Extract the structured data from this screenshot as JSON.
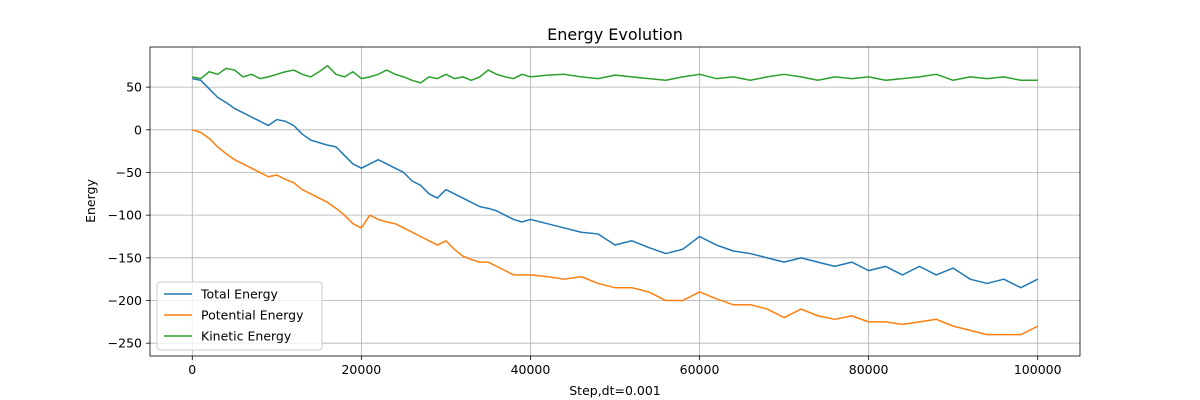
{
  "chart_data": {
    "type": "line",
    "title": "Energy Evolution",
    "xlabel": "Step,dt=0.001",
    "ylabel": "Energy",
    "xlim": [
      -5000,
      105000
    ],
    "ylim": [
      -265,
      97
    ],
    "x_ticks": [
      0,
      20000,
      40000,
      60000,
      80000,
      100000
    ],
    "x_tick_labels": [
      "0",
      "20000",
      "40000",
      "60000",
      "80000",
      "100000"
    ],
    "y_ticks": [
      -250,
      -200,
      -150,
      -100,
      -50,
      0,
      50
    ],
    "y_tick_labels": [
      "−250",
      "−200",
      "−150",
      "−100",
      "−50",
      "0",
      "50"
    ],
    "grid": true,
    "legend_position": "lower-left",
    "series": [
      {
        "name": "Total Energy",
        "color": "#1f77b4",
        "x": [
          0,
          1000,
          2000,
          3000,
          4000,
          5000,
          6000,
          7000,
          8000,
          9000,
          10000,
          11000,
          12000,
          13000,
          14000,
          15000,
          16000,
          17000,
          18000,
          19000,
          20000,
          21000,
          22000,
          23000,
          24000,
          25000,
          26000,
          27000,
          28000,
          29000,
          30000,
          31000,
          32000,
          33000,
          34000,
          35000,
          36000,
          37000,
          38000,
          39000,
          40000,
          42000,
          44000,
          46000,
          48000,
          50000,
          52000,
          54000,
          56000,
          58000,
          60000,
          62000,
          64000,
          66000,
          68000,
          70000,
          72000,
          74000,
          76000,
          78000,
          80000,
          82000,
          84000,
          86000,
          88000,
          90000,
          92000,
          94000,
          96000,
          98000,
          100000
        ],
        "y": [
          60,
          58,
          48,
          38,
          32,
          25,
          20,
          15,
          10,
          5,
          12,
          10,
          5,
          -5,
          -12,
          -15,
          -18,
          -20,
          -30,
          -40,
          -45,
          -40,
          -35,
          -40,
          -45,
          -50,
          -60,
          -65,
          -75,
          -80,
          -70,
          -75,
          -80,
          -85,
          -90,
          -92,
          -95,
          -100,
          -105,
          -108,
          -105,
          -110,
          -115,
          -120,
          -122,
          -135,
          -130,
          -138,
          -145,
          -140,
          -125,
          -135,
          -142,
          -145,
          -150,
          -155,
          -150,
          -155,
          -160,
          -155,
          -165,
          -160,
          -170,
          -160,
          -170,
          -162,
          -175,
          -180,
          -175,
          -185,
          -175
        ]
      },
      {
        "name": "Potential Energy",
        "color": "#ff7f0e",
        "x": [
          0,
          1000,
          2000,
          3000,
          4000,
          5000,
          6000,
          7000,
          8000,
          9000,
          10000,
          11000,
          12000,
          13000,
          14000,
          15000,
          16000,
          17000,
          18000,
          19000,
          20000,
          21000,
          22000,
          23000,
          24000,
          25000,
          26000,
          27000,
          28000,
          29000,
          30000,
          31000,
          32000,
          33000,
          34000,
          35000,
          36000,
          37000,
          38000,
          39000,
          40000,
          42000,
          44000,
          46000,
          48000,
          50000,
          52000,
          54000,
          56000,
          58000,
          60000,
          62000,
          64000,
          66000,
          68000,
          70000,
          72000,
          74000,
          76000,
          78000,
          80000,
          82000,
          84000,
          86000,
          88000,
          90000,
          92000,
          94000,
          96000,
          98000,
          100000
        ],
        "y": [
          0,
          -3,
          -10,
          -20,
          -28,
          -35,
          -40,
          -45,
          -50,
          -55,
          -53,
          -58,
          -62,
          -70,
          -75,
          -80,
          -85,
          -92,
          -100,
          -110,
          -115,
          -100,
          -105,
          -108,
          -110,
          -115,
          -120,
          -125,
          -130,
          -135,
          -130,
          -140,
          -148,
          -152,
          -155,
          -155,
          -160,
          -165,
          -170,
          -170,
          -170,
          -172,
          -175,
          -172,
          -180,
          -185,
          -185,
          -190,
          -200,
          -200,
          -190,
          -198,
          -205,
          -205,
          -210,
          -220,
          -210,
          -218,
          -222,
          -218,
          -225,
          -225,
          -228,
          -225,
          -222,
          -230,
          -235,
          -240,
          -240,
          -240,
          -230
        ]
      },
      {
        "name": "Kinetic Energy",
        "color": "#2ca02c",
        "x": [
          0,
          1000,
          2000,
          3000,
          4000,
          5000,
          6000,
          7000,
          8000,
          9000,
          10000,
          11000,
          12000,
          13000,
          14000,
          15000,
          16000,
          17000,
          18000,
          19000,
          20000,
          21000,
          22000,
          23000,
          24000,
          25000,
          26000,
          27000,
          28000,
          29000,
          30000,
          31000,
          32000,
          33000,
          34000,
          35000,
          36000,
          37000,
          38000,
          39000,
          40000,
          42000,
          44000,
          46000,
          48000,
          50000,
          52000,
          54000,
          56000,
          58000,
          60000,
          62000,
          64000,
          66000,
          68000,
          70000,
          72000,
          74000,
          76000,
          78000,
          80000,
          82000,
          84000,
          86000,
          88000,
          90000,
          92000,
          94000,
          96000,
          98000,
          100000
        ],
        "y": [
          62,
          60,
          68,
          65,
          72,
          70,
          62,
          65,
          60,
          62,
          65,
          68,
          70,
          65,
          62,
          68,
          75,
          65,
          62,
          68,
          60,
          62,
          65,
          70,
          65,
          62,
          58,
          55,
          62,
          60,
          65,
          60,
          62,
          58,
          62,
          70,
          65,
          62,
          60,
          65,
          62,
          64,
          65,
          62,
          60,
          64,
          62,
          60,
          58,
          62,
          65,
          60,
          62,
          58,
          62,
          65,
          62,
          58,
          62,
          60,
          62,
          58,
          60,
          62,
          65,
          58,
          62,
          60,
          62,
          58,
          58
        ]
      }
    ]
  }
}
